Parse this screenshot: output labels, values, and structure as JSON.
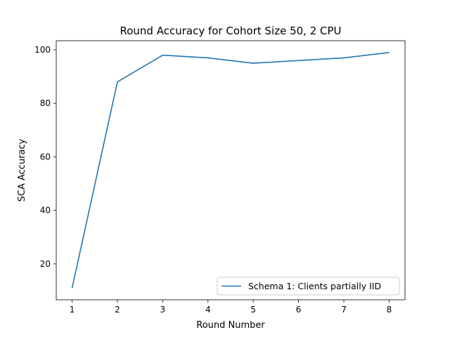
{
  "chart_data": {
    "type": "line",
    "title": "Round Accuracy for Cohort Size 50, 2 CPU",
    "xlabel": "Round Number",
    "ylabel": "SCA Accuracy",
    "x": [
      1,
      2,
      3,
      4,
      5,
      6,
      7,
      8
    ],
    "series": [
      {
        "name": "Schema 1: Clients partially IID",
        "color": "#1f77b4",
        "values": [
          11,
          88,
          98,
          97,
          95,
          96,
          97,
          99
        ]
      }
    ],
    "xlim": [
      0.65,
      8.35
    ],
    "ylim": [
      6.6,
      103.4
    ],
    "xticks": [
      1,
      2,
      3,
      4,
      5,
      6,
      7,
      8
    ],
    "yticks": [
      20,
      40,
      60,
      80,
      100
    ],
    "grid": false,
    "legend_position": "lower-right"
  }
}
